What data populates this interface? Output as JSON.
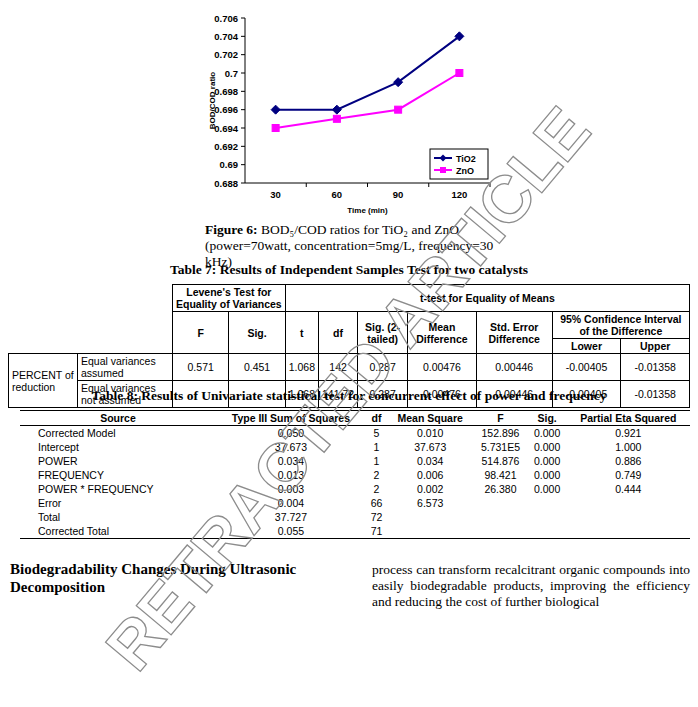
{
  "chart_data": {
    "type": "line",
    "categories": [
      "30",
      "60",
      "90",
      "120"
    ],
    "x_label": "Time (min)",
    "y_label": "BOD/COD ratio",
    "series": [
      {
        "name": "TiO2",
        "color": "#000080",
        "marker": "diamond",
        "values": [
          0.696,
          0.696,
          0.699,
          0.704
        ]
      },
      {
        "name": "ZnO",
        "color": "#ff00ff",
        "marker": "square",
        "values": [
          0.694,
          0.695,
          0.696,
          0.7
        ]
      }
    ],
    "ylim": [
      0.688,
      0.706
    ],
    "yticks": [
      0.688,
      0.69,
      0.692,
      0.694,
      0.696,
      0.698,
      0.7,
      0.702,
      0.704,
      0.706
    ],
    "grid": false,
    "legend": "lower right"
  },
  "document": {
    "caption": {
      "label": "Figure 6:",
      "text": "BOD₅/COD ratios for TiO₂ and ZnO (power=70watt, concentration=5mg/L, frequency=30 kHz)"
    },
    "table7": {
      "title": "Table 7: Results of Independent Samples Test for two catalysts",
      "levene_header": "Levene's Test for Equality of Variances",
      "levene_columns": [
        "F",
        "Sig."
      ],
      "ttest_header": "t-test for Equality of Means",
      "ttest_columns": [
        "t",
        "df",
        "Sig. (2-tailed)",
        "Mean Difference",
        "Std. Error Difference"
      ],
      "ci_header": "95% Confidence Interval of the Difference",
      "ci_columns": [
        "Lower",
        "Upper"
      ],
      "row_group": "PERCENT of reduction",
      "rows": [
        {
          "label": "Equal variances assumed",
          "cells": [
            "0.571",
            "0.451",
            "1.068",
            "142",
            "0.287",
            "0.00476",
            "0.00446",
            "-0.00405",
            "-0.01358"
          ]
        },
        {
          "label": "Equal variances not assumed",
          "cells": [
            null,
            null,
            "1.068",
            "141.72",
            "0.287",
            "0.00476",
            "0.00446",
            "-0.00405",
            "-0.01358"
          ]
        }
      ]
    },
    "table8": {
      "title": "Table 8: Results of Univariate statistical test for concurrent effect of power and frequency",
      "columns": [
        "Source",
        "Type III Sum of Squares",
        "df",
        "Mean Square",
        "F",
        "Sig.",
        "Partial Eta Squared"
      ],
      "rows": [
        [
          "Corrected Model",
          "0.050",
          "5",
          "0.010",
          "152.896",
          "0.000",
          "0.921"
        ],
        [
          "Intercept",
          "37.673",
          "1",
          "37.673",
          "5.731E5",
          "0.000",
          "1.000"
        ],
        [
          "POWER",
          "0.034",
          "1",
          "0.034",
          "514.876",
          "0.000",
          "0.886"
        ],
        [
          "FREQUENCY",
          "0.013",
          "2",
          "0.006",
          "98.421",
          "0.000",
          "0.749"
        ],
        [
          "POWER * FREQUENCY",
          "0.003",
          "2",
          "0.002",
          "26.380",
          "0.000",
          "0.444"
        ],
        [
          "Error",
          "0.004",
          "66",
          "6.573",
          null,
          null,
          null
        ],
        [
          "Total",
          "37.727",
          "72",
          null,
          null,
          null,
          null
        ],
        [
          "Corrected Total",
          "0.055",
          "71",
          null,
          null,
          null,
          null
        ]
      ]
    },
    "section_heading": "Biodegradability Changes During Ultrasonic Decomposition",
    "body_text": "process can transform recalcitrant organic compounds into easily biodegradable products, improving the efficiency and reducing the cost of further biological",
    "watermark": "RETRACTED ARTICLE"
  }
}
